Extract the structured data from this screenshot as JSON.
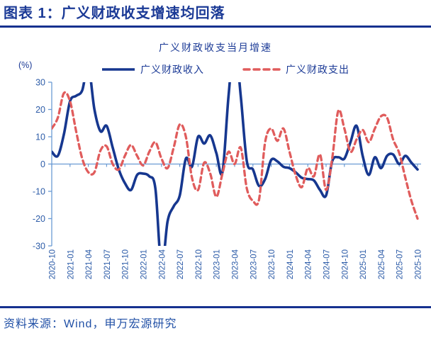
{
  "header": {
    "title": "图表 1：广义财政收支增速均回落"
  },
  "footer": {
    "source": "资料来源：Wind，申万宏源研究"
  },
  "colors": {
    "navy": "#1b3a96",
    "rule": "#16318f",
    "blue2": "#2150a6",
    "revenue": "#16378f",
    "expenditure": "#e05c5c",
    "axis": "#6b9bd4",
    "tick_label": "#2d5ca8"
  },
  "chart_data": {
    "type": "line",
    "title": "广义财政收支当月增速",
    "ylabel": "(%)",
    "ylim": [
      -30,
      30
    ],
    "y_ticks": [
      30,
      20,
      10,
      0,
      -10,
      -20,
      -30
    ],
    "grid": false,
    "legend_position": "top",
    "clip_to_ylim": true,
    "x": [
      "2020-10",
      "2020-11",
      "2020-12",
      "2021-01",
      "2021-02",
      "2021-03",
      "2021-04",
      "2021-05",
      "2021-06",
      "2021-07",
      "2021-08",
      "2021-09",
      "2021-10",
      "2021-11",
      "2021-12",
      "2022-01",
      "2022-02",
      "2022-03",
      "2022-04",
      "2022-05",
      "2022-06",
      "2022-07",
      "2022-08",
      "2022-09",
      "2022-10",
      "2022-11",
      "2022-12",
      "2023-01",
      "2023-02",
      "2023-03",
      "2023-04",
      "2023-05",
      "2023-06",
      "2023-07",
      "2023-08",
      "2023-09",
      "2023-10",
      "2023-11",
      "2023-12",
      "2024-01",
      "2024-02",
      "2024-03",
      "2024-04",
      "2024-05",
      "2024-06",
      "2024-07",
      "2024-08",
      "2024-09",
      "2024-10",
      "2024-11",
      "2024-12",
      "2025-01",
      "2025-02",
      "2025-03",
      "2025-04",
      "2025-05",
      "2025-06",
      "2025-07",
      "2025-08",
      "2025-09",
      "2025-10"
    ],
    "x_tick_labels": [
      "2020-10",
      "2021-01",
      "2021-04",
      "2021-07",
      "2021-10",
      "2022-01",
      "2022-04",
      "2022-07",
      "2022-10",
      "2023-01",
      "2023-04",
      "2023-07",
      "2023-10",
      "2024-01",
      "2024-04",
      "2024-07",
      "2024-10",
      "2025-01",
      "2025-04",
      "2025-07",
      "2025-10"
    ],
    "series": [
      {
        "name": "广义财政收入",
        "style": "solid",
        "color": "#16378f",
        "values": [
          4.5,
          3,
          11,
          23,
          25,
          27,
          36,
          20,
          12,
          14,
          6,
          -2,
          -7,
          -9.5,
          -4,
          -3.5,
          -4.5,
          -9,
          -38,
          -21,
          -15.5,
          -11.5,
          2,
          -1,
          10,
          7.5,
          10.5,
          4,
          -3,
          25,
          45,
          25,
          1,
          -2,
          -8,
          -5.5,
          1.5,
          1,
          -1,
          -1.5,
          -3,
          -5,
          -5.5,
          -6,
          -9.5,
          -11.5,
          1,
          2.5,
          2,
          8,
          14,
          3,
          -4,
          2.5,
          -1.5,
          3,
          3.5,
          0,
          3,
          0.5,
          -2
        ]
      },
      {
        "name": "广义财政支出",
        "style": "dashed",
        "color": "#e05c5c",
        "values": [
          13,
          17,
          26,
          23,
          12,
          2,
          -3,
          -3,
          5,
          6.5,
          0,
          -2,
          3,
          7,
          3,
          -0.5,
          4.5,
          8,
          2,
          -1.5,
          6,
          14.5,
          10,
          -5,
          -9.5,
          0.5,
          -3.5,
          -12,
          -3.5,
          4.5,
          0,
          6,
          -9,
          -13.5,
          -13,
          8,
          13,
          8.5,
          13,
          4.5,
          -4,
          -8.5,
          -1.5,
          -4.5,
          3.5,
          -9.5,
          2,
          19.5,
          13,
          4.5,
          9,
          12.5,
          8,
          13,
          17.5,
          17,
          9,
          4,
          -5,
          -13.5,
          -20
        ]
      }
    ]
  }
}
